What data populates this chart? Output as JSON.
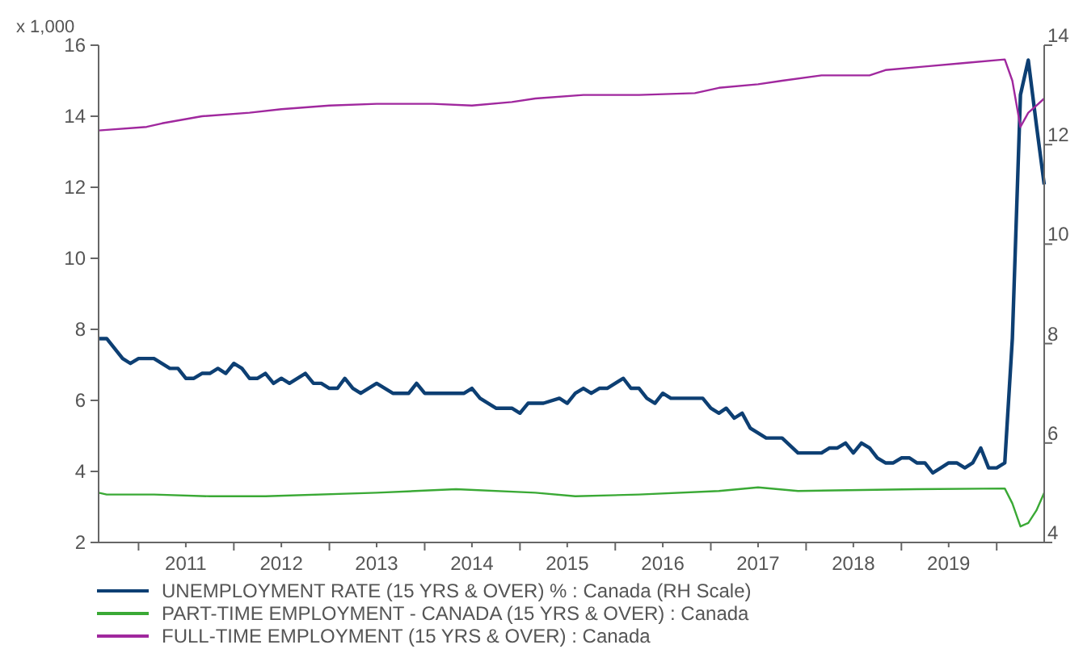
{
  "chart_data": {
    "type": "line",
    "ylabel": "x 1,000",
    "legend": "bottom",
    "grid": false,
    "marker": "none",
    "line_style": "solid",
    "xlim": [
      "2010-08-01",
      "2020-07-01"
    ],
    "xticks": [
      {
        "value": "2011-01-01",
        "label": null
      },
      {
        "value": "2011-07-01",
        "label": "2011"
      },
      {
        "value": "2012-01-01",
        "label": null
      },
      {
        "value": "2012-07-01",
        "label": "2012"
      },
      {
        "value": "2013-01-01",
        "label": null
      },
      {
        "value": "2013-07-01",
        "label": "2013"
      },
      {
        "value": "2014-01-01",
        "label": null
      },
      {
        "value": "2014-07-01",
        "label": "2014"
      },
      {
        "value": "2015-01-01",
        "label": null
      },
      {
        "value": "2015-07-01",
        "label": "2015"
      },
      {
        "value": "2016-01-01",
        "label": null
      },
      {
        "value": "2016-07-01",
        "label": "2016"
      },
      {
        "value": "2017-01-01",
        "label": null
      },
      {
        "value": "2017-07-01",
        "label": "2017"
      },
      {
        "value": "2018-01-01",
        "label": null
      },
      {
        "value": "2018-07-01",
        "label": "2018"
      },
      {
        "value": "2019-01-01",
        "label": null
      },
      {
        "value": "2019-07-01",
        "label": "2019"
      },
      {
        "value": "2020-01-01",
        "label": null
      }
    ],
    "ylim": [
      2,
      16
    ],
    "yticks": [
      2,
      4,
      6,
      8,
      10,
      12,
      14,
      16
    ],
    "y2lim": [
      4,
      14
    ],
    "y2ticks": [
      4,
      6,
      8,
      10,
      12,
      14
    ],
    "series": [
      {
        "name": "UNEMPLOYMENT RATE (15 YRS & OVER) % : Canada (RH Scale)",
        "color": "#0d3f73",
        "axis": "y2",
        "x": [
          "2010-08",
          "2010-09",
          "2010-11",
          "2010-12",
          "2011-01",
          "2011-03",
          "2011-05",
          "2011-06",
          "2011-07",
          "2011-08",
          "2011-09",
          "2011-10",
          "2011-11",
          "2011-12",
          "2012-01",
          "2012-02",
          "2012-03",
          "2012-04",
          "2012-05",
          "2012-06",
          "2012-07",
          "2012-08",
          "2012-10",
          "2012-11",
          "2012-12",
          "2013-01",
          "2013-02",
          "2013-03",
          "2013-04",
          "2013-05",
          "2013-07",
          "2013-09",
          "2013-11",
          "2013-12",
          "2014-01",
          "2014-03",
          "2014-06",
          "2014-07",
          "2014-08",
          "2014-10",
          "2014-12",
          "2015-01",
          "2015-02",
          "2015-03",
          "2015-04",
          "2015-06",
          "2015-07",
          "2015-08",
          "2015-09",
          "2015-10",
          "2015-11",
          "2015-12",
          "2016-02",
          "2016-03",
          "2016-04",
          "2016-05",
          "2016-06",
          "2016-07",
          "2016-08",
          "2016-12",
          "2017-01",
          "2017-02",
          "2017-03",
          "2017-04",
          "2017-05",
          "2017-06",
          "2017-07",
          "2017-08",
          "2017-09",
          "2017-10",
          "2017-12",
          "2018-03",
          "2018-04",
          "2018-05",
          "2018-06",
          "2018-07",
          "2018-08",
          "2018-09",
          "2018-10",
          "2018-11",
          "2018-12",
          "2019-01",
          "2019-02",
          "2019-03",
          "2019-04",
          "2019-05",
          "2019-06",
          "2019-07",
          "2019-08",
          "2019-09",
          "2019-10",
          "2019-11",
          "2019-12",
          "2020-01",
          "2020-02",
          "2020-03",
          "2020-04",
          "2020-05",
          "2020-06",
          "2020-07"
        ],
        "values": [
          8.1,
          8.1,
          7.7,
          7.6,
          7.7,
          7.7,
          7.5,
          7.5,
          7.3,
          7.3,
          7.4,
          7.4,
          7.5,
          7.4,
          7.6,
          7.5,
          7.3,
          7.3,
          7.4,
          7.2,
          7.3,
          7.2,
          7.4,
          7.2,
          7.2,
          7.1,
          7.1,
          7.3,
          7.1,
          7.0,
          7.2,
          7.0,
          7.0,
          7.2,
          7.0,
          7.0,
          7.0,
          7.1,
          6.9,
          6.7,
          6.7,
          6.6,
          6.8,
          6.8,
          6.8,
          6.9,
          6.8,
          7.0,
          7.1,
          7.0,
          7.1,
          7.1,
          7.3,
          7.1,
          7.1,
          6.9,
          6.8,
          7.0,
          6.9,
          6.9,
          6.7,
          6.6,
          6.7,
          6.5,
          6.6,
          6.3,
          6.2,
          6.1,
          6.1,
          6.1,
          5.8,
          5.8,
          5.9,
          5.9,
          6.0,
          5.8,
          6.0,
          5.9,
          5.7,
          5.6,
          5.6,
          5.7,
          5.7,
          5.6,
          5.6,
          5.4,
          5.5,
          5.6,
          5.6,
          5.5,
          5.6,
          5.9,
          5.5,
          5.5,
          5.6,
          8.1,
          13.0,
          13.7,
          12.4,
          11.2
        ]
      },
      {
        "name": "PART-TIME EMPLOYMENT - CANADA (15 YRS & OVER) : Canada",
        "color": "#3aa935",
        "x": [
          "2010-08",
          "2010-09",
          "2011-03",
          "2011-10",
          "2012-05",
          "2013-07",
          "2014-05",
          "2015-03",
          "2015-08",
          "2016-04",
          "2017-02",
          "2017-07",
          "2017-12",
          "2019-03",
          "2020-02",
          "2020-03",
          "2020-04",
          "2020-05",
          "2020-06",
          "2020-07"
        ],
        "values": [
          3.4,
          3.35,
          3.35,
          3.3,
          3.3,
          3.4,
          3.5,
          3.4,
          3.3,
          3.35,
          3.45,
          3.55,
          3.45,
          3.5,
          3.52,
          3.1,
          2.45,
          2.55,
          2.9,
          3.4
        ]
      },
      {
        "name": "FULL-TIME EMPLOYMENT (15 YRS & OVER) : Canada",
        "color": "#a0289e",
        "x": [
          "2010-08",
          "2011-02",
          "2011-04",
          "2011-09",
          "2012-03",
          "2012-07",
          "2013-01",
          "2013-07",
          "2014-02",
          "2014-07",
          "2014-12",
          "2015-03",
          "2015-09",
          "2016-04",
          "2016-11",
          "2017-02",
          "2017-07",
          "2017-10",
          "2018-03",
          "2018-09",
          "2018-11",
          "2019-04",
          "2019-09",
          "2020-02",
          "2020-03",
          "2020-04",
          "2020-05",
          "2020-06",
          "2020-07"
        ],
        "values": [
          13.6,
          13.7,
          13.8,
          14.0,
          14.1,
          14.2,
          14.3,
          14.35,
          14.35,
          14.3,
          14.4,
          14.5,
          14.6,
          14.6,
          14.65,
          14.8,
          14.9,
          15.0,
          15.15,
          15.15,
          15.3,
          15.4,
          15.5,
          15.6,
          15.0,
          13.7,
          14.1,
          14.3,
          14.5
        ]
      }
    ]
  }
}
